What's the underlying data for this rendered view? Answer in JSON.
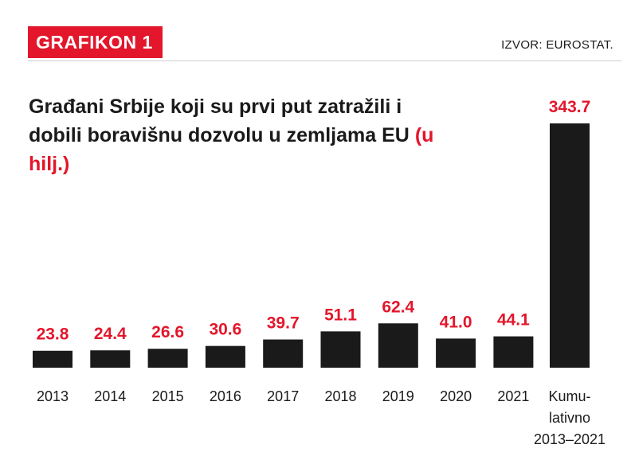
{
  "header": {
    "badge": "GRAFIKON 1",
    "source": "IZVOR: EUROSTAT."
  },
  "title": {
    "main": "Građani Srbije koji su prvi put zatražili i dobili boravišnu dozvolu u zemljama EU",
    "unit": "(u hilj.)"
  },
  "colors": {
    "accent": "#e3162b",
    "bar": "#1a1a1a"
  },
  "chart_data": {
    "type": "bar",
    "categories": [
      "2013",
      "2014",
      "2015",
      "2016",
      "2017",
      "2018",
      "2019",
      "2020",
      "2021",
      "Kumu-\nlativno\n2013–2021"
    ],
    "values": [
      23.8,
      24.4,
      26.6,
      30.6,
      39.7,
      51.1,
      62.4,
      41.0,
      44.1,
      343.7
    ],
    "value_labels": [
      "23.8",
      "24.4",
      "26.6",
      "30.6",
      "39.7",
      "51.1",
      "62.4",
      "41.0",
      "44.1",
      "343.7"
    ],
    "title": "Građani Srbije koji su prvi put zatražili i dobili boravišnu dozvolu u zemljama EU (u hilj.)",
    "xlabel": "",
    "ylabel": "",
    "grid": false,
    "legend": "none"
  }
}
